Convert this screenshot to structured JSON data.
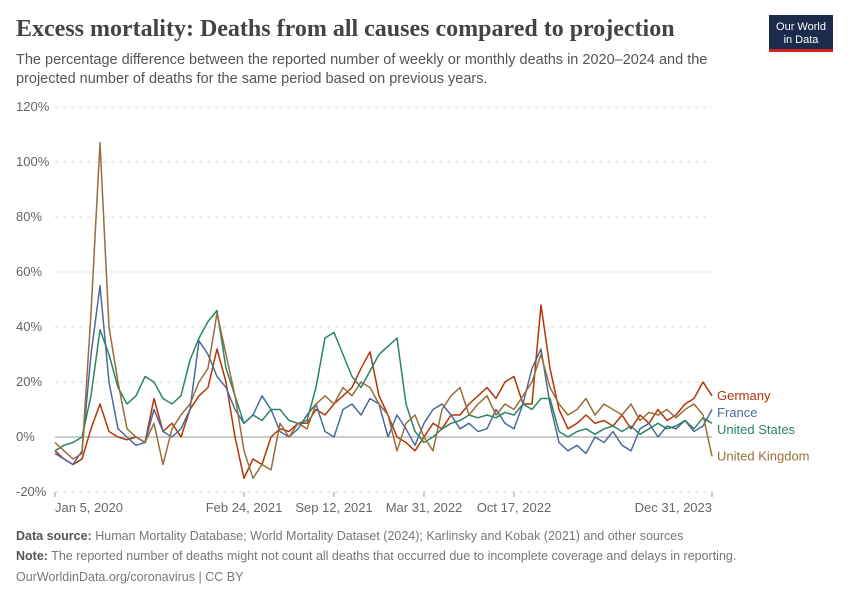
{
  "chart_data": {
    "type": "line",
    "title": "Excess mortality: Deaths from all causes compared to projection",
    "subtitle": [
      "The percentage difference between the reported number of weekly or monthly deaths in 2020–2024 and the",
      "projected number of deaths for the same period based on previous years."
    ],
    "logo": [
      "Our World",
      "in Data"
    ],
    "categories": [
      "Jan 5, 2020",
      null,
      null,
      null,
      null,
      null,
      null,
      null,
      null,
      null,
      null,
      null,
      null,
      null,
      null,
      null,
      null,
      null,
      null,
      null,
      null,
      "Feb 24, 2021",
      null,
      null,
      null,
      null,
      null,
      null,
      null,
      null,
      null,
      "Sep 12, 2021",
      null,
      null,
      null,
      null,
      null,
      null,
      null,
      null,
      null,
      "Mar 31, 2022",
      null,
      null,
      null,
      null,
      null,
      null,
      null,
      null,
      null,
      "Oct 17, 2022",
      null,
      null,
      null,
      null,
      null,
      null,
      null,
      null,
      null,
      null,
      null,
      null,
      null,
      null,
      null,
      null,
      null,
      null,
      null,
      null,
      null,
      "Dec 31, 2023"
    ],
    "ylim": [
      -20,
      120
    ],
    "yticks": [
      {
        "value": -20,
        "label": "-20%"
      },
      {
        "value": 0,
        "label": "0%"
      },
      {
        "value": 20,
        "label": "20%"
      },
      {
        "value": 40,
        "label": "40%"
      },
      {
        "value": 60,
        "label": "60%"
      },
      {
        "value": 80,
        "label": "80%"
      },
      {
        "value": 100,
        "label": "100%"
      },
      {
        "value": 120,
        "label": "120%"
      }
    ],
    "grid": true,
    "series": [
      {
        "name": "Germany",
        "color": "#b13507",
        "values": [
          -5,
          -8,
          -10,
          -8,
          3,
          12,
          2,
          0,
          -1,
          0,
          -2,
          14,
          2,
          5,
          0,
          10,
          15,
          18,
          32,
          20,
          0,
          -15,
          -8,
          -10,
          0,
          3,
          2,
          5,
          5,
          10,
          8,
          12,
          15,
          18,
          25,
          31,
          15,
          8,
          0,
          -2,
          -5,
          0,
          5,
          3,
          8,
          8,
          12,
          15,
          18,
          14,
          20,
          22,
          12,
          12,
          48,
          25,
          10,
          3,
          5,
          8,
          5,
          6,
          4,
          8,
          3,
          8,
          5,
          10,
          6,
          8,
          12,
          14,
          20,
          15
        ]
      },
      {
        "name": "France",
        "color": "#4c6a9c",
        "values": [
          -6,
          -8,
          -10,
          -5,
          30,
          55,
          20,
          3,
          0,
          -3,
          -2,
          10,
          2,
          0,
          3,
          10,
          35,
          30,
          22,
          18,
          10,
          5,
          8,
          15,
          10,
          2,
          0,
          3,
          8,
          12,
          2,
          0,
          10,
          12,
          8,
          14,
          12,
          0,
          8,
          3,
          -3,
          5,
          10,
          12,
          8,
          3,
          5,
          2,
          3,
          10,
          5,
          3,
          12,
          25,
          32,
          12,
          -2,
          -5,
          -3,
          -6,
          0,
          -2,
          2,
          -3,
          -5,
          3,
          5,
          0,
          4,
          3,
          6,
          2,
          4,
          10
        ]
      },
      {
        "name": "United States",
        "color": "#2c8465",
        "values": [
          -5,
          -3,
          -2,
          0,
          15,
          39,
          30,
          18,
          12,
          15,
          22,
          20,
          14,
          12,
          15,
          28,
          36,
          42,
          46,
          25,
          15,
          5,
          8,
          6,
          10,
          10,
          6,
          5,
          6,
          18,
          36,
          38,
          30,
          22,
          18,
          24,
          30,
          33,
          36,
          12,
          2,
          -2,
          0,
          3,
          5,
          6,
          8,
          7,
          8,
          7,
          9,
          8,
          12,
          10,
          14,
          14,
          2,
          0,
          2,
          3,
          1,
          3,
          4,
          2,
          4,
          1,
          3,
          5,
          3,
          4,
          6,
          3,
          7,
          5
        ]
      },
      {
        "name": "United Kingdom",
        "color": "#996d39",
        "values": [
          -2,
          -5,
          -8,
          -6,
          45,
          107,
          40,
          20,
          3,
          0,
          -2,
          5,
          -10,
          3,
          8,
          12,
          20,
          25,
          45,
          30,
          15,
          -5,
          -15,
          -10,
          -12,
          5,
          0,
          5,
          3,
          12,
          15,
          12,
          18,
          15,
          20,
          18,
          12,
          8,
          -5,
          5,
          8,
          0,
          -5,
          10,
          15,
          18,
          8,
          12,
          15,
          8,
          12,
          10,
          15,
          20,
          30,
          18,
          12,
          8,
          10,
          14,
          8,
          12,
          10,
          8,
          12,
          6,
          9,
          8,
          10,
          7,
          10,
          12,
          8,
          -7
        ]
      }
    ],
    "source_label": "Data source:",
    "source": "Human Mortality Database; World Mortality Dataset (2024); Karlinsky and Kobak (2021) and other sources",
    "note_label": "Note:",
    "note": "The reported number of deaths might not count all deaths that occurred due to incomplete coverage and delays in reporting.",
    "credit": "OurWorldinData.org/coronavirus | CC BY"
  }
}
